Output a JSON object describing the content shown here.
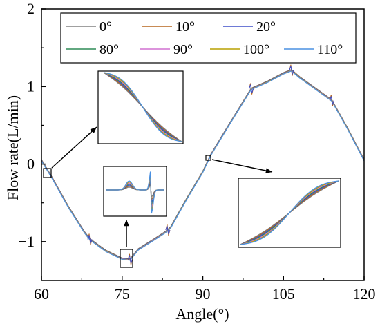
{
  "chart_data": {
    "type": "line",
    "xlabel": "Angle(°)",
    "ylabel": "Flow rate(L/min)",
    "xlim": [
      60,
      120
    ],
    "ylim": [
      -1.5,
      2
    ],
    "x_ticks": [
      60,
      75,
      90,
      105,
      120
    ],
    "x_tick_labels": [
      "60",
      "75",
      "90",
      "105",
      "120"
    ],
    "y_ticks": [
      -1,
      0,
      1,
      2
    ],
    "y_tick_labels": [
      "−1",
      "0",
      "1",
      "2"
    ],
    "grid": false,
    "legend_placement": "top",
    "base_curve": {
      "x": [
        60,
        62,
        65,
        68,
        69,
        72,
        75,
        76.5,
        78,
        81,
        83,
        84,
        87,
        90,
        91.5,
        95,
        99,
        102,
        105,
        106.5,
        108,
        111,
        114,
        117,
        120
      ],
      "y": [
        0.05,
        -0.18,
        -0.55,
        -0.88,
        -0.97,
        -1.12,
        -1.22,
        -1.23,
        -1.1,
        -0.97,
        -0.88,
        -0.82,
        -0.45,
        -0.1,
        0.12,
        0.52,
        0.97,
        1.06,
        1.17,
        1.21,
        1.12,
        0.97,
        0.82,
        0.45,
        0.05
      ]
    },
    "series": [
      {
        "name": "0°",
        "color": "#808080"
      },
      {
        "name": "10°",
        "color": "#b5651d"
      },
      {
        "name": "20°",
        "color": "#3f4fc9"
      },
      {
        "name": "80°",
        "color": "#2e8b57"
      },
      {
        "name": "90°",
        "color": "#d070d0"
      },
      {
        "name": "100°",
        "color": "#b8a000"
      },
      {
        "name": "110°",
        "color": "#4a90e2"
      }
    ]
  }
}
